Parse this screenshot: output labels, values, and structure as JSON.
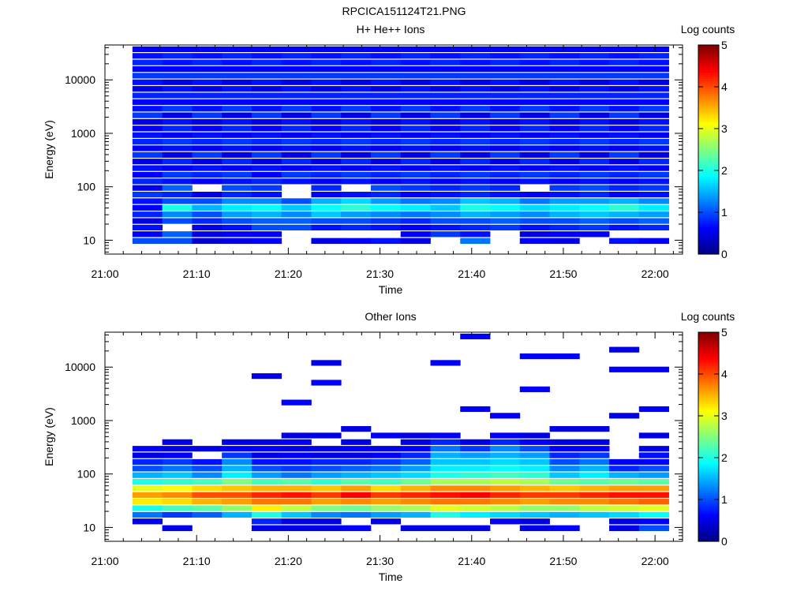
{
  "figure_title": "RPCICA151124T21.PNG",
  "chart_data": [
    {
      "type": "heatmap",
      "title": "H+ He++ Ions",
      "xlabel": "Time",
      "ylabel": "Energy (eV)",
      "colorbar_label": "Log counts",
      "colorbar_ticks": [
        "0",
        "1",
        "2",
        "3",
        "4",
        "5"
      ],
      "xticks": [
        "21:00",
        "21:10",
        "21:20",
        "21:30",
        "21:40",
        "21:50",
        "22:00"
      ],
      "yticks": [
        "10",
        "100",
        "1000",
        "10000"
      ],
      "xlim": [
        "21:00",
        "22:03"
      ],
      "ylim": [
        5.5,
        45000
      ],
      "yscale": "log",
      "x_start": "21:03",
      "x_step_minutes": 3.25,
      "num_time_bins": 18,
      "energy_bins_eV": [
        9.5,
        12.7,
        16.9,
        22.4,
        29.8,
        39.6,
        52.7,
        70,
        93,
        124,
        164,
        219,
        291,
        386,
        514,
        683,
        907,
        1206,
        1603,
        2131,
        2832,
        3764,
        5003,
        6650,
        8838,
        11747,
        15613,
        20750,
        27579,
        36654
      ],
      "log_counts": [
        [
          1.0,
          0.6,
          0.7,
          0.5,
          0.8,
          0.6,
          0.7,
          0.9,
          0.5,
          0.8,
          0.6,
          0.7,
          0.5,
          0.9,
          0.6,
          0.8,
          0.7,
          0.6,
          0.5,
          0.9,
          0.7,
          0.6,
          0.8,
          0.5,
          0.7,
          0.9,
          0.6,
          0.8,
          0.7,
          0.6
        ],
        [
          1.0,
          1.1,
          null,
          1.0,
          1.3,
          2.0,
          1.0,
          0.8,
          1.1,
          0.7,
          0.9,
          0.6,
          0.8,
          0.5,
          0.7,
          0.9,
          0.6,
          0.8,
          0.7,
          0.5,
          0.9,
          0.6,
          0.8,
          0.7,
          0.5,
          0.9,
          0.6,
          0.7,
          0.8,
          0.6
        ],
        [
          0.4,
          0.5,
          0.5,
          0.8,
          1.0,
          1.5,
          1.0,
          0.5,
          null,
          0.6,
          0.8,
          0.7,
          0.5,
          0.9,
          0.6,
          0.8,
          0.7,
          0.6,
          0.5,
          0.9,
          0.7,
          0.6,
          0.8,
          0.5,
          0.7,
          0.9,
          0.6,
          0.8,
          0.7,
          0.6
        ],
        [
          0.5,
          0.6,
          0.7,
          1.0,
          1.4,
          1.8,
          1.3,
          0.8,
          1.0,
          0.7,
          0.9,
          0.6,
          0.8,
          0.5,
          0.7,
          0.9,
          0.6,
          0.8,
          0.7,
          0.5,
          0.9,
          0.6,
          0.8,
          0.7,
          0.5,
          0.9,
          0.6,
          0.7,
          0.8,
          0.6
        ],
        [
          0.6,
          0.6,
          1.0,
          1.1,
          1.5,
          1.9,
          1.3,
          0.7,
          0.9,
          0.8,
          0.6,
          0.7,
          0.5,
          0.9,
          0.6,
          0.8,
          0.7,
          0.6,
          0.5,
          0.9,
          0.7,
          0.6,
          0.8,
          0.5,
          0.7,
          0.9,
          0.6,
          0.8,
          0.7,
          0.6
        ],
        [
          null,
          null,
          1.0,
          1.1,
          1.3,
          1.6,
          1.0,
          null,
          null,
          0.7,
          0.9,
          0.6,
          0.8,
          0.5,
          0.7,
          0.9,
          0.6,
          0.8,
          0.7,
          0.5,
          0.9,
          0.6,
          0.8,
          0.7,
          0.5,
          0.9,
          0.6,
          0.7,
          0.8,
          0.6
        ],
        [
          0.5,
          null,
          0.7,
          1.0,
          1.6,
          1.9,
          1.5,
          0.6,
          0.8,
          0.6,
          0.8,
          0.7,
          0.5,
          0.9,
          0.6,
          0.8,
          0.7,
          0.6,
          0.5,
          0.9,
          0.7,
          0.6,
          0.8,
          0.5,
          0.7,
          0.9,
          0.6,
          0.8,
          0.7,
          0.6
        ],
        [
          0.6,
          null,
          0.8,
          1.0,
          1.4,
          2.1,
          1.7,
          0.7,
          null,
          0.7,
          0.9,
          0.6,
          0.8,
          0.5,
          0.7,
          0.9,
          0.6,
          0.8,
          0.7,
          0.5,
          0.9,
          0.6,
          0.8,
          0.7,
          0.5,
          0.9,
          0.6,
          0.7,
          0.8,
          0.6
        ],
        [
          0.7,
          null,
          0.7,
          0.9,
          1.3,
          1.9,
          1.4,
          0.8,
          1.0,
          0.6,
          0.8,
          0.7,
          0.5,
          0.9,
          0.6,
          0.8,
          0.7,
          0.6,
          0.5,
          0.9,
          0.7,
          0.6,
          0.8,
          0.5,
          0.7,
          0.9,
          0.6,
          0.8,
          0.7,
          0.6
        ],
        [
          0.5,
          0.6,
          0.6,
          0.8,
          1.2,
          1.8,
          1.2,
          0.6,
          0.9,
          0.7,
          0.9,
          0.6,
          0.8,
          0.5,
          0.7,
          0.9,
          0.6,
          0.8,
          0.7,
          0.5,
          0.9,
          0.6,
          0.8,
          0.7,
          0.5,
          0.9,
          0.6,
          0.7,
          0.8,
          0.6
        ],
        [
          null,
          0.9,
          0.7,
          1.0,
          1.3,
          1.6,
          1.3,
          0.7,
          0.8,
          0.6,
          0.8,
          0.7,
          0.5,
          0.9,
          0.6,
          0.8,
          0.7,
          0.6,
          0.5,
          0.9,
          0.7,
          0.6,
          0.8,
          0.5,
          0.7,
          0.9,
          0.6,
          0.8,
          0.7,
          0.6
        ],
        [
          1.2,
          0.7,
          0.8,
          1.0,
          1.5,
          2.0,
          1.6,
          0.8,
          0.9,
          0.7,
          0.9,
          0.6,
          0.8,
          0.5,
          0.7,
          0.9,
          0.6,
          0.8,
          0.7,
          0.5,
          0.9,
          0.6,
          0.8,
          0.7,
          0.5,
          0.9,
          0.6,
          0.7,
          0.8,
          0.6
        ],
        [
          null,
          null,
          0.9,
          1.1,
          1.4,
          1.9,
          1.5,
          0.7,
          0.8,
          0.6,
          0.8,
          0.7,
          0.5,
          0.9,
          0.6,
          0.8,
          0.7,
          0.6,
          0.5,
          0.9,
          0.7,
          0.6,
          0.8,
          0.5,
          0.7,
          0.9,
          0.6,
          0.8,
          0.7,
          0.6
        ],
        [
          0.6,
          0.5,
          0.7,
          1.0,
          1.3,
          1.7,
          1.2,
          0.6,
          null,
          0.7,
          0.9,
          0.6,
          0.8,
          0.5,
          0.7,
          0.9,
          0.6,
          0.8,
          0.7,
          0.5,
          0.9,
          0.6,
          0.8,
          0.7,
          0.5,
          0.9,
          0.6,
          0.7,
          0.8,
          0.6
        ],
        [
          0.5,
          0.6,
          0.8,
          1.0,
          1.5,
          1.8,
          1.4,
          0.7,
          0.9,
          0.6,
          0.8,
          0.7,
          0.5,
          0.9,
          0.6,
          0.8,
          0.7,
          0.6,
          0.5,
          0.9,
          0.7,
          0.6,
          0.8,
          0.5,
          0.7,
          0.9,
          0.6,
          0.8,
          0.7,
          0.6
        ],
        [
          null,
          0.6,
          0.9,
          1.1,
          1.6,
          1.9,
          1.4,
          0.8,
          1.0,
          0.7,
          0.9,
          0.6,
          0.8,
          0.5,
          0.7,
          0.9,
          0.6,
          0.8,
          0.7,
          0.5,
          0.9,
          0.6,
          0.8,
          0.7,
          0.5,
          0.9,
          0.6,
          0.7,
          0.8,
          0.6
        ],
        [
          0.7,
          null,
          0.7,
          1.0,
          1.5,
          2.1,
          1.5,
          0.6,
          0.8,
          0.6,
          0.8,
          0.7,
          0.5,
          0.9,
          0.6,
          0.8,
          0.7,
          0.6,
          0.5,
          0.9,
          0.7,
          0.6,
          0.8,
          0.5,
          0.7,
          0.9,
          0.6,
          0.8,
          0.7,
          0.6
        ],
        [
          0.6,
          null,
          0.8,
          1.1,
          1.4,
          1.8,
          1.3,
          0.7,
          0.9,
          0.7,
          0.9,
          0.6,
          0.8,
          0.5,
          0.7,
          0.9,
          0.6,
          0.8,
          0.7,
          0.5,
          0.9,
          0.6,
          0.8,
          0.7,
          0.5,
          0.9,
          0.6,
          0.7,
          0.8,
          0.6
        ]
      ]
    },
    {
      "type": "heatmap",
      "title": "Other Ions",
      "xlabel": "Time",
      "ylabel": "Energy (eV)",
      "colorbar_label": "Log counts",
      "colorbar_ticks": [
        "0",
        "1",
        "2",
        "3",
        "4",
        "5"
      ],
      "xticks": [
        "21:00",
        "21:10",
        "21:20",
        "21:30",
        "21:40",
        "21:50",
        "22:00"
      ],
      "yticks": [
        "10",
        "100",
        "1000",
        "10000"
      ],
      "xlim": [
        "21:00",
        "22:03"
      ],
      "ylim": [
        5.5,
        45000
      ],
      "yscale": "log",
      "x_start": "21:03",
      "x_step_minutes": 3.25,
      "num_time_bins": 18,
      "energy_bins_eV": [
        9.5,
        12.7,
        16.9,
        22.4,
        29.8,
        39.6,
        52.7,
        70,
        93,
        124,
        164,
        219,
        291,
        386,
        514,
        683,
        907,
        1206,
        1603,
        2131,
        2832,
        3764,
        5003,
        6650,
        8838,
        11747,
        15613,
        20750,
        27579,
        36654
      ],
      "log_counts": [
        [
          null,
          0.5,
          1.2,
          2.0,
          3.2,
          3.6,
          3.0,
          2.0,
          1.5,
          1.0,
          0.8,
          0.5,
          0.6,
          null,
          null,
          null,
          null,
          null,
          null,
          null,
          null,
          null,
          null,
          null,
          null,
          null,
          null,
          null,
          null,
          null
        ],
        [
          0.5,
          null,
          0.9,
          2.2,
          3.3,
          3.7,
          3.1,
          2.1,
          1.6,
          1.2,
          0.9,
          0.6,
          0.5,
          0.5,
          null,
          null,
          null,
          null,
          null,
          null,
          null,
          null,
          null,
          null,
          null,
          null,
          null,
          null,
          null,
          null
        ],
        [
          null,
          null,
          1.1,
          2.3,
          3.5,
          4.0,
          3.3,
          2.2,
          1.3,
          1.0,
          0.7,
          null,
          0.5,
          null,
          null,
          null,
          null,
          null,
          null,
          null,
          null,
          null,
          null,
          null,
          null,
          null,
          null,
          null,
          null,
          null
        ],
        [
          null,
          null,
          1.5,
          2.6,
          3.6,
          4.0,
          3.4,
          2.5,
          1.8,
          1.5,
          1.3,
          0.9,
          0.6,
          0.5,
          null,
          null,
          null,
          null,
          null,
          null,
          null,
          null,
          null,
          null,
          null,
          null,
          null,
          null,
          null,
          null
        ],
        [
          0.5,
          0.8,
          2.0,
          3.2,
          3.8,
          4.2,
          3.5,
          2.2,
          1.4,
          1.0,
          0.7,
          0.5,
          0.6,
          0.5,
          null,
          null,
          null,
          null,
          null,
          null,
          null,
          null,
          null,
          0.5,
          null,
          null,
          null,
          null,
          null,
          null
        ],
        [
          0.5,
          0.5,
          1.6,
          2.8,
          3.8,
          4.3,
          3.5,
          2.3,
          1.2,
          0.9,
          0.7,
          0.6,
          0.5,
          0.6,
          0.5,
          null,
          null,
          null,
          null,
          0.6,
          null,
          null,
          null,
          null,
          null,
          null,
          null,
          null,
          null,
          null
        ],
        [
          0.5,
          0.5,
          1.3,
          2.5,
          3.6,
          4.1,
          3.4,
          2.1,
          1.4,
          1.0,
          0.8,
          0.5,
          0.5,
          null,
          0.5,
          null,
          null,
          null,
          null,
          null,
          null,
          null,
          0.6,
          null,
          null,
          0.5,
          null,
          null,
          null,
          null
        ],
        [
          0.6,
          null,
          1.2,
          2.4,
          3.7,
          4.4,
          3.6,
          2.3,
          1.5,
          1.1,
          0.8,
          0.5,
          0.6,
          0.5,
          null,
          0.5,
          null,
          null,
          null,
          null,
          null,
          null,
          null,
          null,
          null,
          null,
          null,
          null,
          null,
          null
        ],
        [
          null,
          0.5,
          1.4,
          2.6,
          3.6,
          4.1,
          3.3,
          2.2,
          1.6,
          1.2,
          0.9,
          0.6,
          0.5,
          null,
          0.6,
          null,
          null,
          null,
          null,
          null,
          null,
          null,
          null,
          null,
          null,
          null,
          null,
          null,
          null,
          null
        ],
        [
          0.5,
          null,
          1.5,
          2.7,
          3.7,
          4.2,
          3.5,
          2.4,
          1.7,
          1.4,
          1.1,
          0.8,
          0.6,
          0.5,
          0.5,
          null,
          null,
          null,
          null,
          null,
          null,
          null,
          null,
          null,
          null,
          null,
          null,
          null,
          null,
          null
        ],
        [
          0.5,
          null,
          2.0,
          3.0,
          3.8,
          4.3,
          3.7,
          2.7,
          2.0,
          1.8,
          1.6,
          1.5,
          1.2,
          0.8,
          0.6,
          null,
          null,
          null,
          null,
          null,
          null,
          null,
          null,
          null,
          null,
          0.6,
          null,
          null,
          null,
          null
        ],
        [
          0.5,
          null,
          1.8,
          2.9,
          3.8,
          4.4,
          3.7,
          2.7,
          2.1,
          1.8,
          1.6,
          1.4,
          0.9,
          0.5,
          null,
          null,
          null,
          null,
          0.6,
          null,
          null,
          null,
          null,
          null,
          null,
          null,
          null,
          null,
          null,
          0.6
        ],
        [
          null,
          0.6,
          1.7,
          2.8,
          3.7,
          4.2,
          3.6,
          2.8,
          2.2,
          1.9,
          1.7,
          1.5,
          1.3,
          0.8,
          0.6,
          null,
          null,
          0.6,
          null,
          null,
          null,
          null,
          null,
          null,
          null,
          null,
          null,
          null,
          null,
          null
        ],
        [
          0.5,
          0.5,
          1.6,
          2.6,
          3.6,
          4.1,
          3.5,
          2.7,
          2.1,
          1.8,
          1.6,
          1.4,
          1.0,
          0.6,
          0.5,
          null,
          null,
          null,
          null,
          null,
          null,
          0.6,
          null,
          null,
          null,
          null,
          0.6,
          null,
          null,
          null
        ],
        [
          0.6,
          null,
          1.5,
          2.6,
          3.7,
          4.1,
          3.4,
          2.4,
          1.6,
          1.3,
          1.0,
          0.8,
          0.6,
          0.5,
          null,
          0.5,
          null,
          null,
          null,
          null,
          null,
          null,
          null,
          null,
          null,
          null,
          0.6,
          null,
          null,
          null
        ],
        [
          null,
          null,
          1.6,
          2.8,
          3.7,
          4.2,
          3.5,
          2.3,
          1.8,
          1.5,
          1.2,
          0.9,
          0.6,
          0.5,
          null,
          0.5,
          null,
          null,
          null,
          null,
          null,
          null,
          null,
          null,
          null,
          null,
          null,
          null,
          null,
          null
        ],
        [
          0.5,
          0.5,
          1.7,
          2.9,
          3.8,
          4.3,
          3.6,
          2.4,
          1.5,
          0.8,
          0.6,
          null,
          null,
          null,
          null,
          null,
          null,
          0.5,
          null,
          null,
          null,
          null,
          null,
          null,
          0.6,
          null,
          null,
          0.5,
          null,
          null
        ],
        [
          1.0,
          0.6,
          1.9,
          3.0,
          3.9,
          4.3,
          3.6,
          2.3,
          1.4,
          1.0,
          0.6,
          0.7,
          0.5,
          null,
          0.5,
          null,
          null,
          null,
          0.6,
          null,
          null,
          null,
          null,
          null,
          0.6,
          null,
          null,
          null,
          null,
          null
        ]
      ]
    }
  ]
}
